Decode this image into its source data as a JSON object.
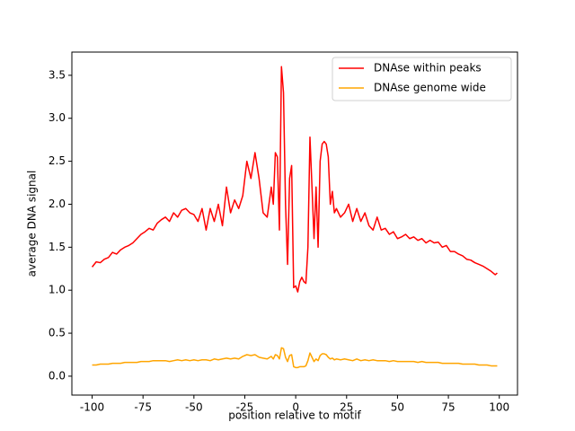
{
  "chart_data": {
    "type": "line",
    "xlabel": "position relative to motif",
    "ylabel": "average DNA signal",
    "x": [
      -100,
      -98,
      -96,
      -94,
      -92,
      -90,
      -88,
      -86,
      -84,
      -82,
      -80,
      -78,
      -76,
      -74,
      -72,
      -70,
      -68,
      -66,
      -64,
      -62,
      -60,
      -58,
      -56,
      -54,
      -52,
      -50,
      -48,
      -46,
      -44,
      -42,
      -40,
      -38,
      -36,
      -34,
      -32,
      -30,
      -28,
      -26,
      -24,
      -22,
      -20,
      -18,
      -16,
      -14,
      -12,
      -11,
      -10,
      -9,
      -8,
      -7,
      -6,
      -5,
      -4,
      -3,
      -2,
      -1,
      0,
      1,
      2,
      3,
      4,
      5,
      6,
      7,
      8,
      9,
      10,
      11,
      12,
      13,
      14,
      15,
      16,
      17,
      18,
      19,
      20,
      22,
      24,
      26,
      28,
      30,
      32,
      34,
      36,
      38,
      40,
      42,
      44,
      46,
      48,
      50,
      52,
      54,
      56,
      58,
      60,
      62,
      64,
      66,
      68,
      70,
      72,
      74,
      76,
      78,
      80,
      82,
      84,
      86,
      88,
      90,
      92,
      94,
      96,
      98,
      99
    ],
    "series": [
      {
        "name": "DNAse within peaks",
        "color": "#ff0000",
        "values": [
          1.27,
          1.33,
          1.32,
          1.36,
          1.38,
          1.44,
          1.42,
          1.47,
          1.5,
          1.52,
          1.55,
          1.6,
          1.65,
          1.68,
          1.72,
          1.7,
          1.78,
          1.82,
          1.85,
          1.8,
          1.9,
          1.85,
          1.93,
          1.95,
          1.9,
          1.88,
          1.8,
          1.95,
          1.7,
          1.95,
          1.8,
          2.0,
          1.75,
          2.2,
          1.9,
          2.05,
          1.95,
          2.1,
          2.5,
          2.3,
          2.6,
          2.3,
          1.9,
          1.85,
          2.2,
          2.0,
          2.6,
          2.55,
          1.7,
          3.6,
          3.3,
          2.0,
          1.3,
          2.3,
          2.45,
          1.03,
          1.05,
          0.98,
          1.1,
          1.15,
          1.1,
          1.08,
          1.5,
          2.78,
          2.2,
          1.6,
          2.2,
          1.5,
          2.5,
          2.7,
          2.73,
          2.7,
          2.55,
          2.0,
          2.15,
          1.9,
          1.95,
          1.85,
          1.9,
          2.0,
          1.8,
          1.95,
          1.8,
          1.9,
          1.75,
          1.7,
          1.85,
          1.7,
          1.72,
          1.65,
          1.68,
          1.6,
          1.62,
          1.65,
          1.6,
          1.62,
          1.58,
          1.6,
          1.55,
          1.58,
          1.55,
          1.56,
          1.5,
          1.52,
          1.45,
          1.45,
          1.42,
          1.4,
          1.36,
          1.35,
          1.32,
          1.3,
          1.28,
          1.25,
          1.22,
          1.18,
          1.2
        ]
      },
      {
        "name": "DNAse genome wide",
        "color": "#ffa500",
        "values": [
          0.13,
          0.13,
          0.14,
          0.14,
          0.14,
          0.15,
          0.15,
          0.15,
          0.16,
          0.16,
          0.16,
          0.16,
          0.17,
          0.17,
          0.17,
          0.18,
          0.18,
          0.18,
          0.18,
          0.17,
          0.18,
          0.19,
          0.18,
          0.19,
          0.18,
          0.19,
          0.18,
          0.19,
          0.19,
          0.18,
          0.2,
          0.19,
          0.2,
          0.21,
          0.2,
          0.21,
          0.2,
          0.23,
          0.25,
          0.24,
          0.25,
          0.22,
          0.21,
          0.2,
          0.23,
          0.2,
          0.25,
          0.24,
          0.2,
          0.33,
          0.32,
          0.22,
          0.17,
          0.24,
          0.25,
          0.11,
          0.1,
          0.1,
          0.11,
          0.11,
          0.11,
          0.12,
          0.18,
          0.27,
          0.22,
          0.17,
          0.2,
          0.18,
          0.24,
          0.26,
          0.26,
          0.25,
          0.22,
          0.2,
          0.21,
          0.19,
          0.2,
          0.19,
          0.2,
          0.19,
          0.18,
          0.2,
          0.18,
          0.19,
          0.18,
          0.19,
          0.18,
          0.18,
          0.18,
          0.17,
          0.18,
          0.17,
          0.17,
          0.17,
          0.17,
          0.17,
          0.16,
          0.17,
          0.16,
          0.16,
          0.16,
          0.16,
          0.15,
          0.15,
          0.15,
          0.15,
          0.15,
          0.14,
          0.14,
          0.14,
          0.14,
          0.13,
          0.13,
          0.13,
          0.12,
          0.12,
          0.12
        ]
      }
    ],
    "xlim": [
      -109.95,
      108.95
    ],
    "xticks": [
      -100,
      -75,
      -50,
      -25,
      0,
      25,
      50,
      75,
      100
    ],
    "ylim": [
      -0.22,
      3.77
    ],
    "yticks": [
      {
        "value": 0,
        "label": "0.0"
      },
      0.5,
      {
        "value": 1,
        "label": "1.0"
      },
      1.5,
      {
        "value": 2,
        "label": "2.0"
      },
      2.5,
      {
        "value": 3,
        "label": "3.0"
      },
      3.5
    ],
    "grid": false,
    "legend": "upper right"
  }
}
